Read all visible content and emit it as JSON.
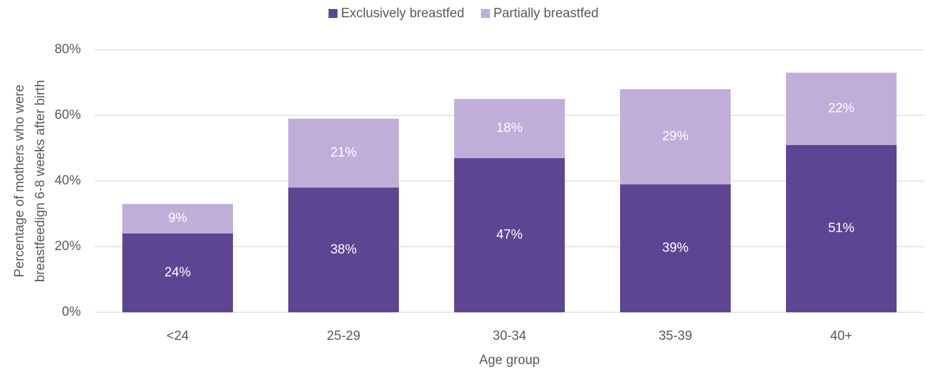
{
  "chart_data": {
    "type": "stacked_bar",
    "y_label": [
      "Percentage of mothers who were",
      "breastfeedign 6-8 weeks after birth"
    ],
    "x_label": "Age group",
    "categories": [
      "<24",
      "25-29",
      "30-34",
      "35-39",
      "40+"
    ],
    "series": [
      {
        "name": "Exclusively breastfed",
        "color": "#5e4594",
        "values": [
          24,
          38,
          47,
          39,
          51
        ],
        "value_labels": [
          "24%",
          "38%",
          "47%",
          "39%",
          "51%"
        ]
      },
      {
        "name": "Partially breastfed",
        "color": "#bfaed8",
        "values": [
          9,
          21,
          18,
          29,
          22
        ],
        "value_labels": [
          "9%",
          "21%",
          "18%",
          "29%",
          "22%"
        ]
      }
    ],
    "ylim": [
      0,
      80
    ],
    "yticks": [
      {
        "value": 0,
        "label": "0%"
      },
      {
        "value": 20,
        "label": "20%"
      },
      {
        "value": 40,
        "label": "40%"
      },
      {
        "value": 60,
        "label": "60%"
      },
      {
        "value": 80,
        "label": "80%"
      }
    ],
    "grid": true,
    "legend": "top"
  }
}
